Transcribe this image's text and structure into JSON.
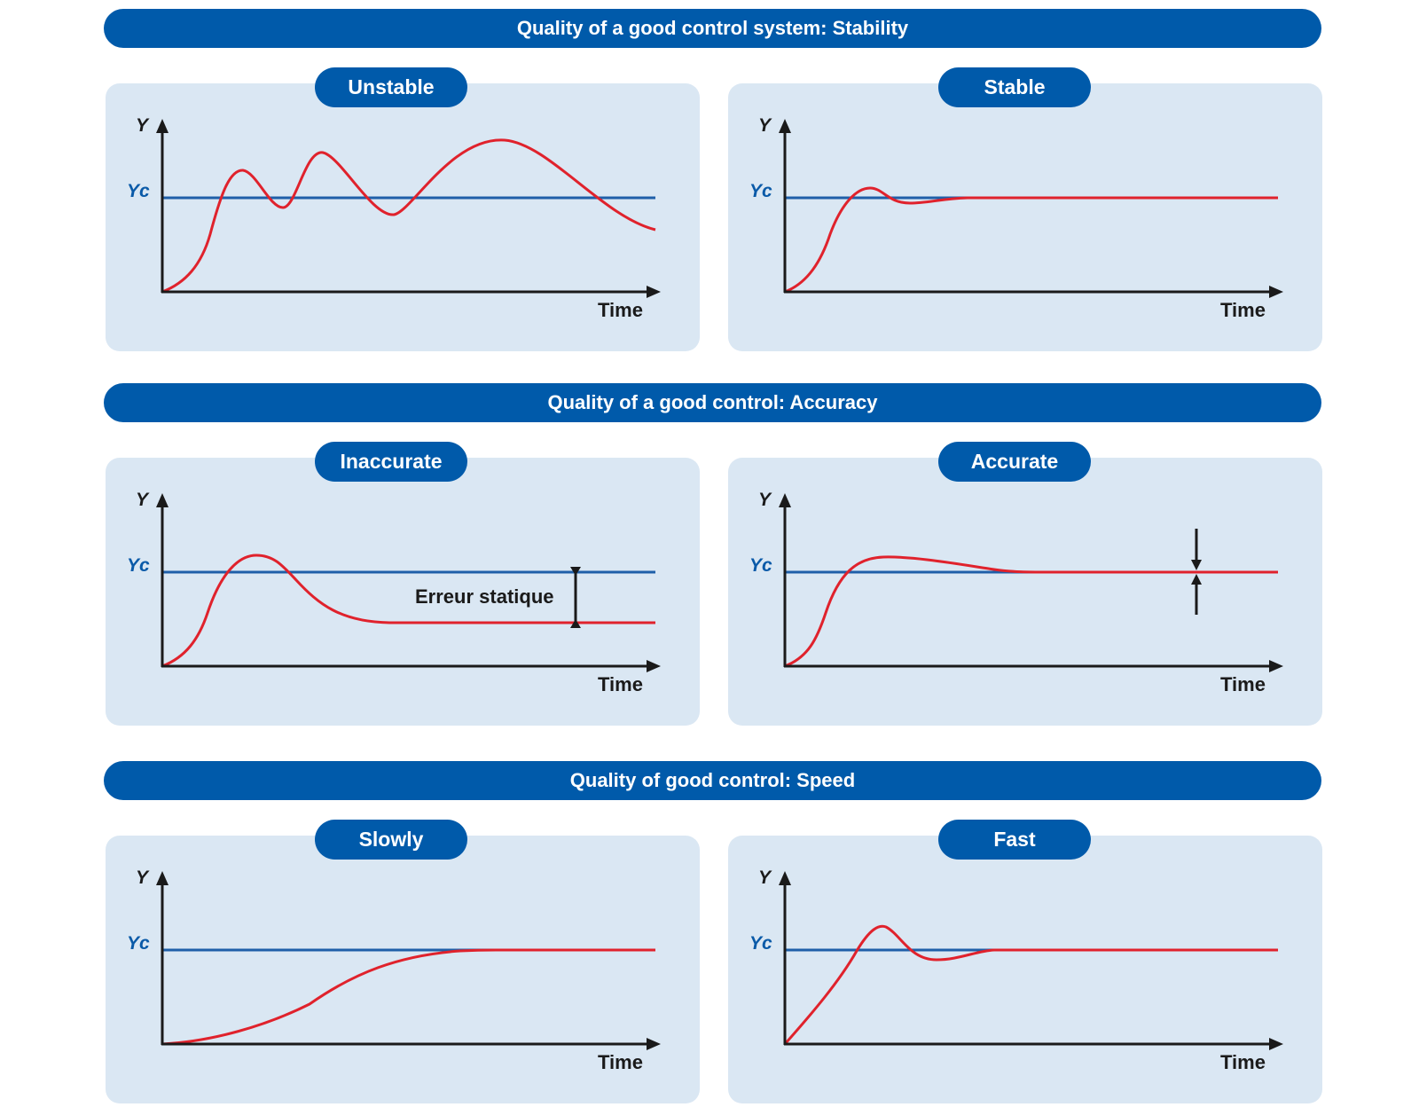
{
  "sections": [
    {
      "title": "Quality of a good control system: Stability"
    },
    {
      "title": "Quality of a good control: Accuracy"
    },
    {
      "title": "Quality of good control: Speed"
    }
  ],
  "panels": [
    {
      "label": "Unstable",
      "y_axis": "Y",
      "setpoint": "Yc",
      "x_axis": "Time"
    },
    {
      "label": "Stable",
      "y_axis": "Y",
      "setpoint": "Yc",
      "x_axis": "Time"
    },
    {
      "label": "Inaccurate",
      "y_axis": "Y",
      "setpoint": "Yc",
      "x_axis": "Time",
      "annotation": "Erreur statique"
    },
    {
      "label": "Accurate",
      "y_axis": "Y",
      "setpoint": "Yc",
      "x_axis": "Time"
    },
    {
      "label": "Slowly",
      "y_axis": "Y",
      "setpoint": "Yc",
      "x_axis": "Time"
    },
    {
      "label": "Fast",
      "y_axis": "Y",
      "setpoint": "Yc",
      "x_axis": "Time"
    }
  ],
  "colors": {
    "section_bar": "#005aaa",
    "panel_bg": "#dae7f3",
    "setpoint_line": "#1f5fa8",
    "response_curve": "#e0222c",
    "axis": "#1a1a1a"
  }
}
